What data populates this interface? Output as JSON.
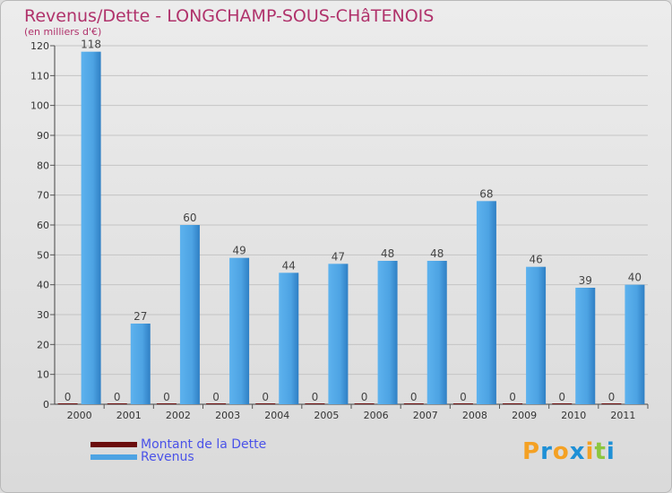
{
  "chart_data": {
    "type": "bar",
    "title": "Revenus/Dette - LONGCHAMP-SOUS-CHâTENOIS",
    "subtitle": "(en milliers d'€)",
    "categories": [
      "2000",
      "2001",
      "2002",
      "2003",
      "2004",
      "2005",
      "2006",
      "2007",
      "2008",
      "2009",
      "2010",
      "2011"
    ],
    "series": [
      {
        "name": "Montant de la Dette",
        "color": "#6b0d0d",
        "values": [
          0,
          0,
          0,
          0,
          0,
          0,
          0,
          0,
          0,
          0,
          0,
          0
        ]
      },
      {
        "name": "Revenus",
        "color": "#4da3e3",
        "values": [
          118,
          27,
          60,
          49,
          44,
          47,
          48,
          48,
          68,
          46,
          39,
          40
        ]
      }
    ],
    "ylim": [
      0,
      120
    ],
    "yticks": [
      0,
      10,
      20,
      30,
      40,
      50,
      60,
      70,
      80,
      90,
      100,
      110,
      120
    ],
    "grid": true,
    "legend_position": "bottom-left"
  },
  "brand": {
    "logo_letters": [
      "P",
      "r",
      "o",
      "x",
      "i",
      "t",
      "i"
    ],
    "logo_colors": [
      "#f4a124",
      "#1e90d6",
      "#f4a124",
      "#1e90d6",
      "#f4a124",
      "#8cc63f",
      "#1e90d6"
    ]
  }
}
